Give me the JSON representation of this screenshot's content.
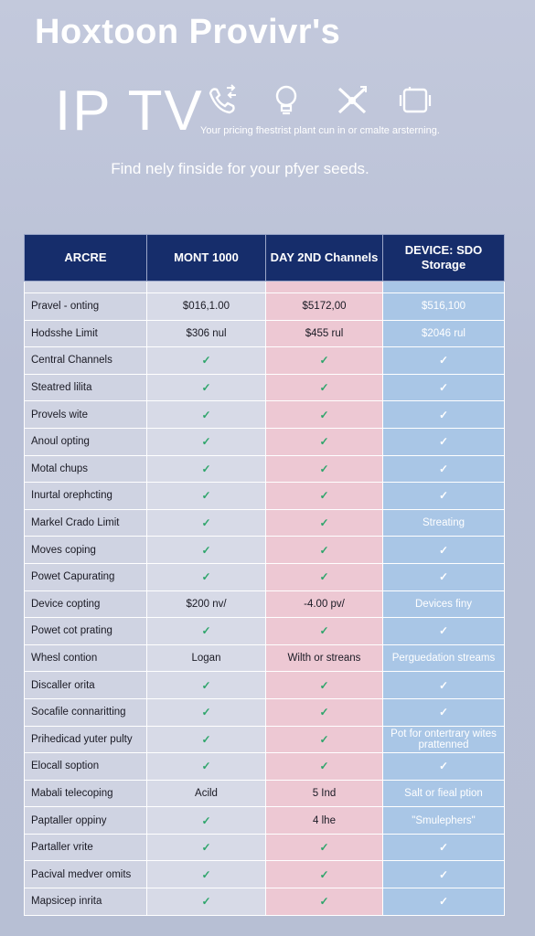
{
  "header": {
    "provider": "Hoxtoon Provivr's",
    "product": "IP TV",
    "tagline": "Your pricing fhestrist plant cun in or cmalte arsterning.",
    "subtitle": "Find nely finside for your pfyer seeds."
  },
  "icons": [
    "phone-icon",
    "lightbulb-icon",
    "tools-icon",
    "device-icon"
  ],
  "table": {
    "columns": [
      "ARCRE",
      "MONT 1000",
      "DAY 2ND Channels",
      "DEVICE: SDO Storage"
    ],
    "rows": [
      [
        "Pravel - onting",
        "$016,1.00",
        "$5172,00",
        "$516,100"
      ],
      [
        "Hodsshe Limit",
        "$306 nul",
        "$455 rul",
        "$2046 rul"
      ],
      [
        "Central Channels",
        "✓",
        "✓",
        "✓"
      ],
      [
        "Steatred lilita",
        "✓",
        "✓",
        "✓"
      ],
      [
        "Provels wite",
        "✓",
        "✓",
        "✓"
      ],
      [
        "Anoul opting",
        "✓",
        "✓",
        "✓"
      ],
      [
        "Motal chups",
        "✓",
        "✓",
        "✓"
      ],
      [
        "Inurtal orephcting",
        "✓",
        "✓",
        "✓"
      ],
      [
        "Markel Crado Limit",
        "✓",
        "✓",
        "Streating"
      ],
      [
        "Moves coping",
        "✓",
        "✓",
        "✓"
      ],
      [
        "Powet Capurating",
        "✓",
        "✓",
        "✓"
      ],
      [
        "Device copting",
        "$200 nv/",
        "-4.00 pv/",
        "Devices finy"
      ],
      [
        "Powet cot prating",
        "✓",
        "✓",
        "✓"
      ],
      [
        "Whesl contion",
        "Logan",
        "Wilth or streans",
        "Perguedation streams"
      ],
      [
        "Discaller orita",
        "✓",
        "✓",
        "✓"
      ],
      [
        "Socafile connaritting",
        "✓",
        "✓",
        "✓"
      ],
      [
        "Prihedicad yuter pulty",
        "✓",
        "✓",
        "Pot for ontertrary wites prattenned"
      ],
      [
        "Elocall soption",
        "✓",
        "✓",
        "✓"
      ],
      [
        "Mabali telecoping",
        "Acild",
        "5 Ind",
        "Salt or fieal ption"
      ],
      [
        "Paptaller oppiny",
        "✓",
        "4 lhe",
        "\"Smulephers\""
      ],
      [
        "Partaller vrite",
        "✓",
        "✓",
        "✓"
      ],
      [
        "Pacival medver omits",
        "✓",
        "✓",
        "✓"
      ],
      [
        "Mapsicep inrita",
        "✓",
        "✓",
        "✓"
      ]
    ]
  }
}
